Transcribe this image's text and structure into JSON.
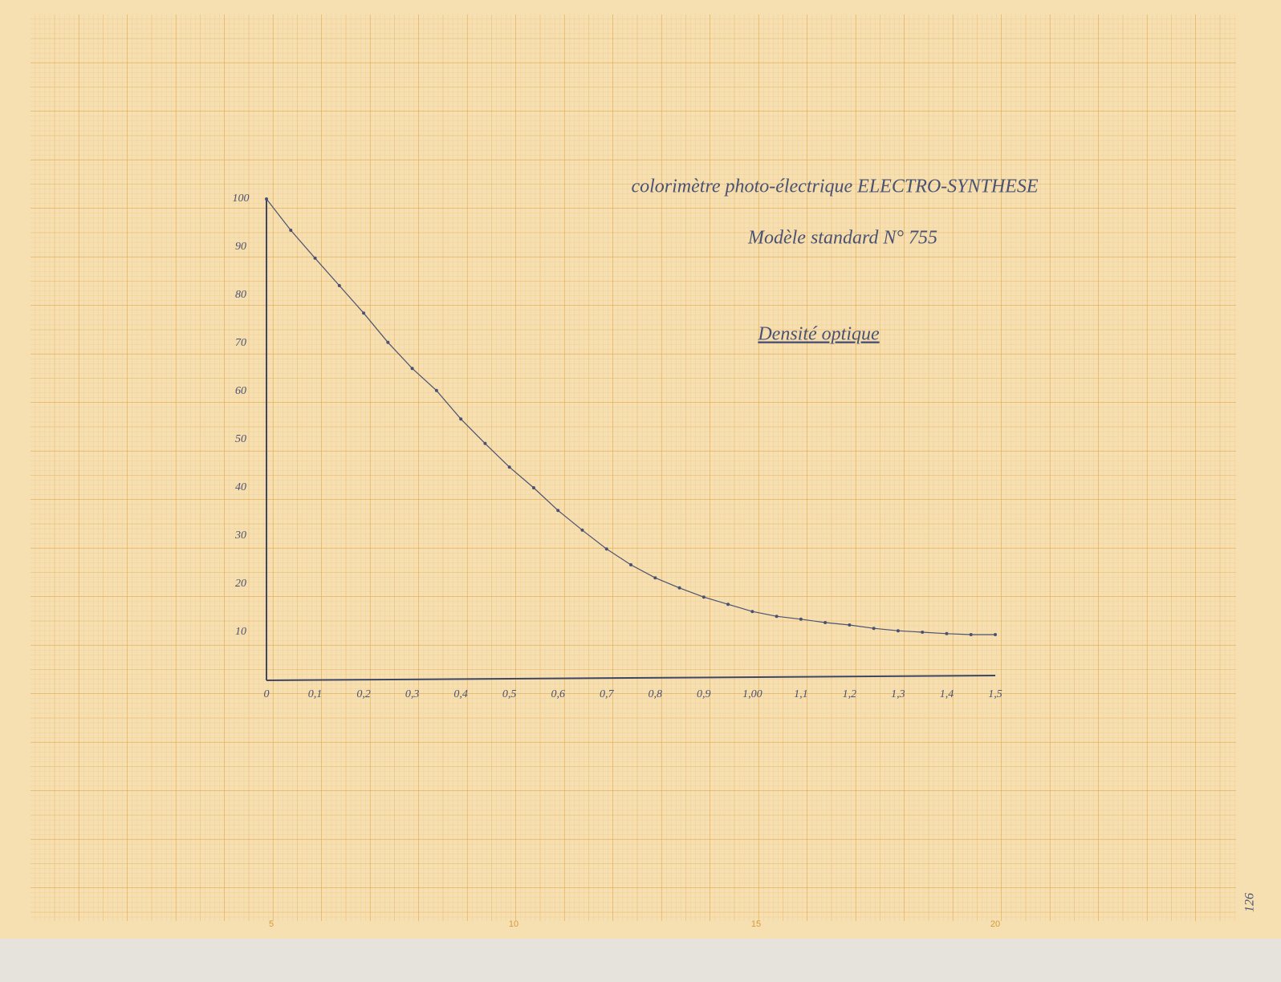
{
  "chart_data": {
    "type": "line",
    "title": "colorimètre photo-électrique ELECTRO-SYNTHESE",
    "subtitle": "Modèle standard N° 755",
    "annotation": "Densité optique",
    "color": "#4a5273",
    "x": [
      0,
      0.05,
      0.1,
      0.15,
      0.2,
      0.25,
      0.3,
      0.35,
      0.4,
      0.45,
      0.5,
      0.55,
      0.6,
      0.65,
      0.7,
      0.75,
      0.8,
      0.85,
      0.9,
      0.95,
      1.0,
      1.05,
      1.1,
      1.15,
      1.2,
      1.25,
      1.3,
      1.35,
      1.4,
      1.45,
      1.5
    ],
    "values": [
      100,
      93.5,
      87.7,
      82,
      76.3,
      70.2,
      64.8,
      60.2,
      54.3,
      49.2,
      44.3,
      40,
      35.3,
      31.2,
      27.3,
      24,
      21.3,
      19.2,
      17.3,
      15.8,
      14.3,
      13.3,
      12.7,
      12,
      11.5,
      10.8,
      10.3,
      10,
      9.7,
      9.5,
      9.5
    ],
    "xlim": [
      0,
      1.5
    ],
    "ylim": [
      0,
      100
    ],
    "xticks": [
      0,
      {
        "value": 0.1,
        "label": "0,1"
      },
      {
        "value": 0.2,
        "label": "0,2"
      },
      {
        "value": 0.3,
        "label": "0,3"
      },
      {
        "value": 0.4,
        "label": "0,4"
      },
      {
        "value": 0.5,
        "label": "0,5"
      },
      {
        "value": 0.6,
        "label": "0,6"
      },
      {
        "value": 0.7,
        "label": "0,7"
      },
      {
        "value": 0.8,
        "label": "0,8"
      },
      {
        "value": 0.9,
        "label": "0,9"
      },
      {
        "value": 1.0,
        "label": "1,00"
      },
      {
        "value": 1.1,
        "label": "1,1"
      },
      {
        "value": 1.2,
        "label": "1,2"
      },
      {
        "value": 1.3,
        "label": "1,3"
      },
      {
        "value": 1.4,
        "label": "1,4"
      },
      {
        "value": 1.5,
        "label": "1,5"
      }
    ],
    "yticks": [
      10,
      20,
      30,
      40,
      50,
      60,
      70,
      80,
      90,
      100
    ]
  },
  "paper": {
    "ruler": [
      "5",
      "10",
      "15",
      "20"
    ],
    "page_number": "126"
  }
}
